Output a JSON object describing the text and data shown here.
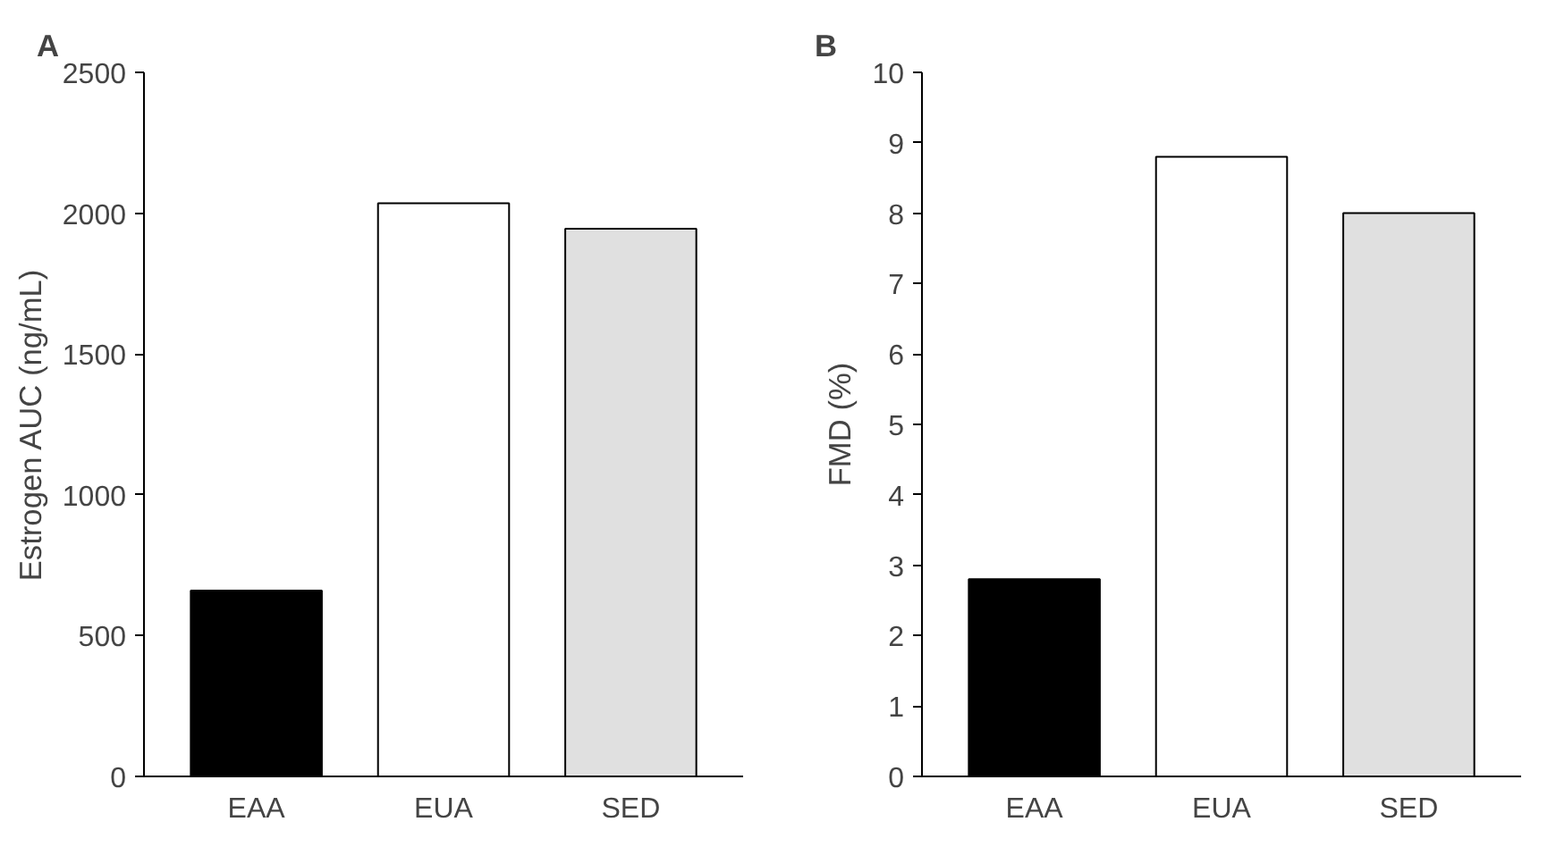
{
  "chart_data": [
    {
      "type": "bar",
      "title": "A",
      "ylabel": "Estrogen AUC (ng/mL)",
      "categories": [
        "EAA",
        "EUA",
        "SED"
      ],
      "values": [
        660,
        2035,
        1945
      ],
      "colors": [
        "#000000",
        "#ffffff",
        "#e0e0e0"
      ],
      "ylim": [
        0,
        2500
      ],
      "yticks": [
        0,
        500,
        1000,
        1500,
        2000,
        2500
      ]
    },
    {
      "type": "bar",
      "title": "B",
      "ylabel": "FMD (%)",
      "categories": [
        "EAA",
        "EUA",
        "SED"
      ],
      "values": [
        2.8,
        8.8,
        8.0
      ],
      "colors": [
        "#000000",
        "#ffffff",
        "#e0e0e0"
      ],
      "ylim": [
        0,
        10
      ],
      "yticks": [
        0,
        1,
        2,
        3,
        4,
        5,
        6,
        7,
        8,
        9,
        10
      ]
    }
  ]
}
